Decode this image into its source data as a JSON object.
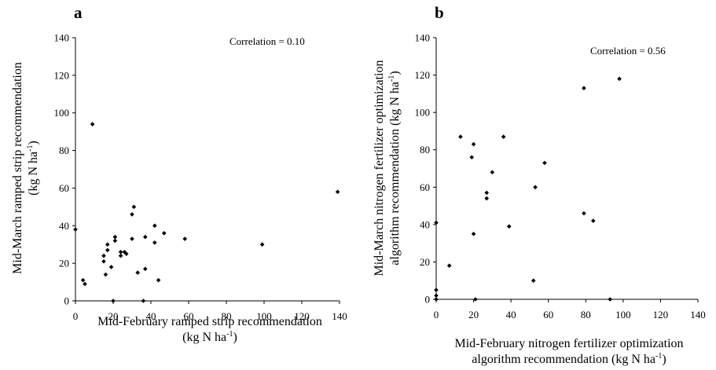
{
  "chart_data": [
    {
      "type": "scatter",
      "panel_label": "a",
      "annotation": "Correlation = 0.10",
      "xlabel_lines": [
        "Mid-February ramped strip recommendation",
        "(kg N ha",
        "-1",
        ")"
      ],
      "ylabel_lines": [
        "Mid-March ramped strip recommendation",
        "(kg N ha",
        "-1",
        ")"
      ],
      "xlim": [
        0,
        140
      ],
      "ylim": [
        0,
        140
      ],
      "xticks": [
        0,
        20,
        40,
        60,
        80,
        100,
        120,
        140
      ],
      "yticks": [
        0,
        20,
        40,
        60,
        80,
        100,
        120,
        140
      ],
      "x_tick_labels": [
        "0",
        "20",
        "40",
        "60",
        "80",
        "100",
        "120",
        "140"
      ],
      "y_tick_labels": [
        "0",
        "20",
        "40",
        "60",
        "80",
        "100",
        "120",
        "140"
      ],
      "points": [
        [
          0,
          38
        ],
        [
          4,
          11
        ],
        [
          5,
          9
        ],
        [
          9,
          94
        ],
        [
          15,
          24
        ],
        [
          15,
          21
        ],
        [
          16,
          14
        ],
        [
          17,
          27
        ],
        [
          17,
          30
        ],
        [
          19,
          18
        ],
        [
          20,
          0
        ],
        [
          21,
          32
        ],
        [
          21,
          34
        ],
        [
          24,
          26
        ],
        [
          24,
          24
        ],
        [
          26,
          26
        ],
        [
          27,
          25
        ],
        [
          30,
          33
        ],
        [
          30,
          46
        ],
        [
          31,
          50
        ],
        [
          33,
          15
        ],
        [
          36,
          0
        ],
        [
          37,
          17
        ],
        [
          37,
          34
        ],
        [
          42,
          31
        ],
        [
          42,
          40
        ],
        [
          44,
          11
        ],
        [
          47,
          36
        ],
        [
          58,
          33
        ],
        [
          99,
          30
        ],
        [
          139,
          58
        ]
      ]
    },
    {
      "type": "scatter",
      "panel_label": "b",
      "annotation": "Correlation = 0.56",
      "xlabel_lines": [
        "Mid-February nitrogen fertilizer optimization",
        "algorithm recommendation (kg N ha",
        "-1",
        ")"
      ],
      "ylabel_lines": [
        "Mid-March nitrogen fertilizer optimization",
        "algorithm recommendation (kg N ha",
        "-1",
        ")"
      ],
      "xlim": [
        0,
        140
      ],
      "ylim": [
        0,
        140
      ],
      "xticks": [
        0,
        20,
        40,
        60,
        80,
        100,
        120,
        140
      ],
      "yticks": [
        0,
        20,
        40,
        60,
        80,
        100,
        120,
        140
      ],
      "x_tick_labels": [
        "0",
        "20",
        "40",
        "60",
        "80",
        "100",
        "120",
        "140"
      ],
      "y_tick_labels": [
        "0",
        "20",
        "40",
        "60",
        "80",
        "100",
        "120",
        "140"
      ],
      "points": [
        [
          0,
          41
        ],
        [
          0,
          5
        ],
        [
          0,
          2
        ],
        [
          0,
          0
        ],
        [
          7,
          18
        ],
        [
          13,
          87
        ],
        [
          19,
          76
        ],
        [
          20,
          83
        ],
        [
          20,
          35
        ],
        [
          21,
          0
        ],
        [
          27,
          57
        ],
        [
          27,
          54
        ],
        [
          30,
          68
        ],
        [
          36,
          87
        ],
        [
          39,
          39
        ],
        [
          52,
          10
        ],
        [
          53,
          60
        ],
        [
          58,
          73
        ],
        [
          79,
          113
        ],
        [
          79,
          46
        ],
        [
          84,
          42
        ],
        [
          93,
          0
        ],
        [
          98,
          118
        ]
      ]
    }
  ]
}
